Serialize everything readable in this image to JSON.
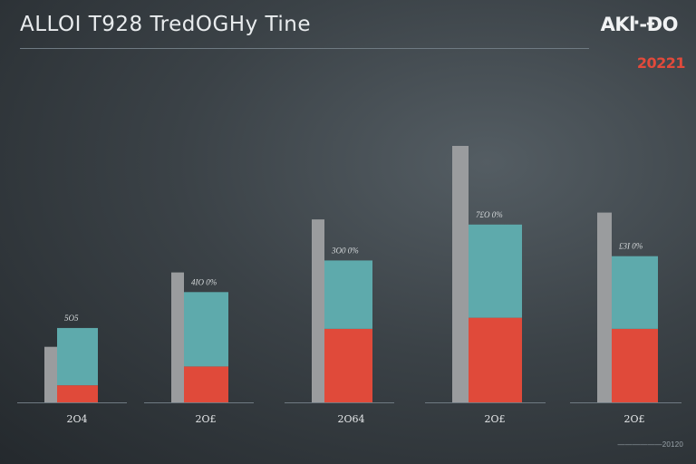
{
  "header": {
    "title": "ALLOI T928 TredOGHy Tine",
    "brand": "AKŀ-ĐO",
    "year": "20221",
    "footnote": "——————20120"
  },
  "colors": {
    "gray_bar": "#9a9c9e",
    "teal": "#5eaaac",
    "red": "#e04a3a",
    "baseline": "#6f7a82"
  },
  "chart_data": {
    "type": "bar",
    "title": "ALLOI T928 TredOGHy Tine",
    "xlabel": "",
    "ylabel": "",
    "ylim": [
      0,
      300
    ],
    "grid": false,
    "legend": "none",
    "categories": [
      "2O4",
      "2O£",
      "2O64",
      "2O£",
      "2O£"
    ],
    "value_labels": [
      "5O5",
      "4IO 0%",
      "3O0 0%",
      "7£O 0%",
      "£3I 0%"
    ],
    "series": [
      {
        "values": [
          65,
          152,
          214,
          300,
          222
        ]
      },
      {
        "values": [
          20,
          42,
          86,
          99,
          86
        ]
      },
      {
        "values": [
          67,
          87,
          80,
          109,
          85
        ]
      }
    ]
  }
}
